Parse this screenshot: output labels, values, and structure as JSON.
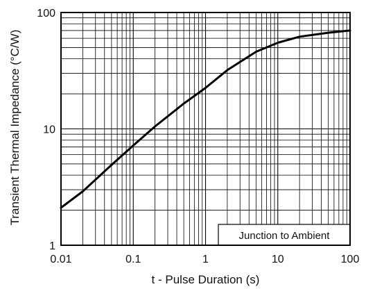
{
  "chart_data": {
    "type": "line",
    "title": "",
    "xlabel": "t - Pulse Duration (s)",
    "ylabel": "Transient Thermal Impedance (°C/W)",
    "x_scale": "log",
    "y_scale": "log",
    "xlim": [
      0.01,
      100
    ],
    "ylim": [
      1,
      100
    ],
    "x_ticks": [
      {
        "value": 0.01,
        "label": "0.01"
      },
      {
        "value": 0.1,
        "label": "0.1"
      },
      {
        "value": 1,
        "label": "1"
      },
      {
        "value": 10,
        "label": "10"
      },
      {
        "value": 100,
        "label": "100"
      }
    ],
    "y_ticks": [
      {
        "value": 1,
        "label": "1"
      },
      {
        "value": 10,
        "label": "10"
      },
      {
        "value": 100,
        "label": "100"
      }
    ],
    "grid": true,
    "annotation": "Junction to Ambient",
    "annotation_position": "bottom-right",
    "series": [
      {
        "color": "#000000",
        "x": [
          0.01,
          0.02,
          0.05,
          0.1,
          0.2,
          0.5,
          1,
          2,
          5,
          10,
          20,
          50,
          100
        ],
        "y": [
          2.1,
          2.9,
          4.9,
          7.2,
          10.5,
          16.5,
          22.5,
          32,
          46,
          55,
          62,
          67,
          70
        ]
      }
    ]
  }
}
